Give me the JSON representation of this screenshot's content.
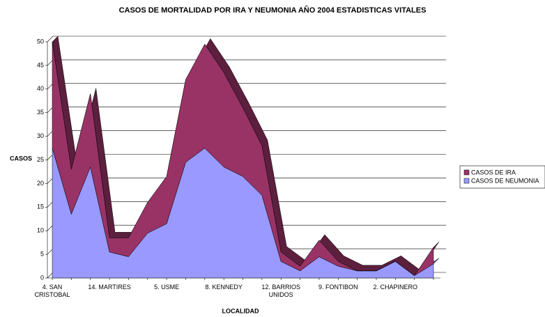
{
  "chart_data": {
    "type": "area",
    "stacked": true,
    "title": "CASOS DE MORTALIDAD POR  IRA Y NEUMONIA AÑO 2004 ESTADISTICAS VITALES",
    "x_label": "LOCALIDAD",
    "y_label": "CASOS",
    "categories": [
      "4. SAN CRISTOBAL",
      null,
      null,
      "14. MARTIRES",
      null,
      null,
      "5. USME",
      null,
      null,
      "8. KENNEDY",
      null,
      null,
      "12. BARRIOS UNIDOS",
      null,
      null,
      "9. FONTIBON",
      null,
      null,
      "2. CHAPINERO",
      null,
      null
    ],
    "series": [
      {
        "name": "CASOS DE IRA",
        "color": "#993366",
        "values": [
          22.5,
          9.5,
          15.5,
          3,
          4,
          6.5,
          10,
          17.5,
          22,
          20,
          14.5,
          10.5,
          2,
          1,
          3.5,
          1,
          0,
          0,
          0,
          0,
          3.5
        ]
      },
      {
        "name": "CASOS DE NEUMONIA",
        "color": "#9999ff",
        "values": [
          27.5,
          13.5,
          23.5,
          5.5,
          4.5,
          9.5,
          11.5,
          24.5,
          27.5,
          23.5,
          21.5,
          17.5,
          3.5,
          1.5,
          4.5,
          2.5,
          1.5,
          1.5,
          3.5,
          0.5,
          3
        ]
      }
    ],
    "ylim": [
      0,
      50
    ],
    "yticks": [
      0,
      5,
      10,
      15,
      20,
      25,
      30,
      35,
      40,
      45,
      50
    ],
    "grid": true,
    "legend": "right"
  }
}
